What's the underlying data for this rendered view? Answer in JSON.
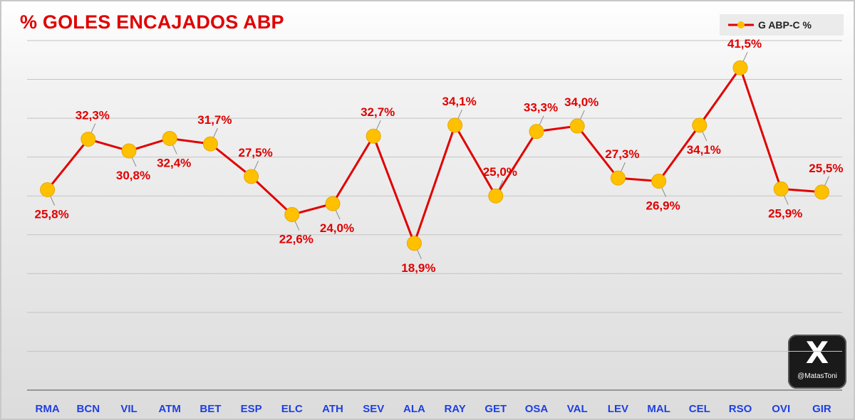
{
  "chart_data": {
    "type": "line",
    "title": "% GOLES ENCAJADOS ABP",
    "categories": [
      "RMA",
      "BCN",
      "VIL",
      "ATM",
      "BET",
      "ESP",
      "ELC",
      "ATH",
      "SEV",
      "ALA",
      "RAY",
      "GET",
      "OSA",
      "VAL",
      "LEV",
      "MAL",
      "CEL",
      "RSO",
      "OVI",
      "GIR"
    ],
    "series": [
      {
        "name": "G ABP-C %",
        "values": [
          25.8,
          32.3,
          30.8,
          32.4,
          31.7,
          27.5,
          22.6,
          24.0,
          32.7,
          18.9,
          34.1,
          25.0,
          33.3,
          34.0,
          27.3,
          26.9,
          34.1,
          41.5,
          25.9,
          25.5
        ],
        "labels": [
          "25,8%",
          "32,3%",
          "30,8%",
          "32,4%",
          "31,7%",
          "27,5%",
          "22,6%",
          "24,0%",
          "32,7%",
          "18,9%",
          "34,1%",
          "25,0%",
          "33,3%",
          "34,0%",
          "27,3%",
          "26,9%",
          "34,1%",
          "41,5%",
          "25,9%",
          "25,5%"
        ],
        "line_color": "#e00000",
        "marker_color": "#ffc000"
      }
    ],
    "ylim": [
      0,
      45
    ],
    "grid": true,
    "legend_position": "top-right",
    "xlabel": "",
    "ylabel": ""
  },
  "watermark": {
    "handle": "@MatasToni",
    "icon": "x-logo-icon"
  }
}
